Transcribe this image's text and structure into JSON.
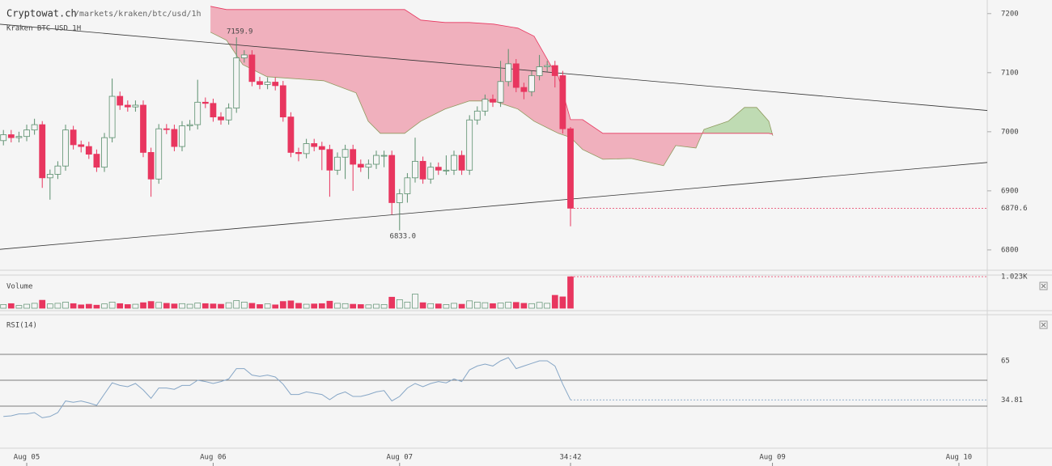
{
  "header": {
    "site": "Cryptowat.ch",
    "path": "/markets/kraken/btc/usd/1h"
  },
  "chart_data": [
    {
      "type": "candlestick",
      "title": "Kraken BTC USD 1H",
      "x": [
        -3,
        -2,
        -1,
        0,
        1,
        2,
        3,
        4,
        5,
        6,
        7,
        8,
        9,
        10,
        11,
        12,
        13,
        14,
        15,
        16,
        17,
        18,
        19,
        20,
        21,
        22,
        23,
        24,
        25,
        26,
        27,
        28,
        29,
        30,
        31,
        32,
        33,
        34,
        35,
        36,
        37,
        38,
        39,
        40,
        41,
        42,
        43,
        44,
        45,
        46,
        47,
        48,
        49,
        50,
        51,
        52,
        53,
        54,
        55,
        56,
        57,
        58,
        59,
        60,
        61,
        62,
        63,
        64,
        65,
        66,
        67,
        68,
        69,
        70
      ],
      "open": [
        6985,
        6995,
        6990,
        6992,
        7003,
        7012,
        6922,
        6928,
        6942,
        7003,
        6978,
        6975,
        6962,
        6940,
        6990,
        7060,
        7045,
        7042,
        7045,
        6965,
        6920,
        7005,
        7004,
        6975,
        7010,
        7012,
        7050,
        7048,
        7025,
        7020,
        7040,
        7125,
        7130,
        7085,
        7080,
        7084,
        7078,
        7025,
        6965,
        6963,
        6980,
        6975,
        6970,
        6935,
        6957,
        6970,
        6945,
        6940,
        6945,
        6960,
        6960,
        6880,
        6895,
        6922,
        6950,
        6920,
        6940,
        6935,
        6935,
        6960,
        6935,
        7020,
        7035,
        7055,
        7050,
        7085,
        7115,
        7075,
        7068,
        7095,
        7110,
        7112,
        7095,
        7005
      ],
      "high": [
        7003,
        7003,
        7000,
        7012,
        7022,
        7018,
        6936,
        6950,
        7012,
        7010,
        6985,
        6983,
        6970,
        6998,
        7090,
        7068,
        7053,
        7053,
        7053,
        6973,
        7013,
        7013,
        7012,
        7018,
        7020,
        7088,
        7058,
        7056,
        7033,
        7048,
        7159.9,
        7138,
        7138,
        7093,
        7092,
        7092,
        7086,
        7033,
        6973,
        6988,
        6988,
        6983,
        6978,
        6965,
        6978,
        6978,
        6953,
        6953,
        6968,
        6968,
        6968,
        6903,
        6930,
        6990,
        6958,
        6948,
        6948,
        6960,
        6968,
        6968,
        7028,
        7043,
        7063,
        7063,
        7120,
        7140,
        7123,
        7083,
        7103,
        7130,
        7120,
        7120,
        7103,
        7008
      ],
      "low": [
        6977,
        6982,
        6982,
        6984,
        6995,
        6905,
        6885,
        6920,
        6934,
        6970,
        6965,
        6954,
        6932,
        6932,
        6982,
        7037,
        7034,
        7034,
        6957,
        6890,
        6912,
        6996,
        6967,
        6967,
        7002,
        7004,
        7040,
        7017,
        7012,
        7012,
        7032,
        7117,
        7077,
        7072,
        7072,
        7070,
        7017,
        6957,
        6950,
        6955,
        6967,
        6935,
        6890,
        6927,
        6920,
        6900,
        6932,
        6920,
        6937,
        6940,
        6860,
        6833.0,
        6880,
        6914,
        6912,
        6912,
        6927,
        6927,
        6927,
        6927,
        6927,
        7012,
        7027,
        7042,
        7042,
        7077,
        7067,
        7055,
        7060,
        7087,
        7102,
        7075,
        6997,
        6840
      ],
      "close": [
        6995,
        6990,
        6992,
        7003,
        7012,
        6922,
        6928,
        6942,
        7003,
        6978,
        6975,
        6962,
        6940,
        6990,
        7060,
        7045,
        7042,
        7045,
        6965,
        6920,
        7005,
        7004,
        6975,
        7010,
        7012,
        7050,
        7048,
        7025,
        7020,
        7040,
        7125,
        7130,
        7085,
        7080,
        7084,
        7078,
        7025,
        6965,
        6963,
        6980,
        6975,
        6970,
        6935,
        6957,
        6970,
        6945,
        6940,
        6945,
        6960,
        6960,
        6880,
        6895,
        6922,
        6950,
        6920,
        6940,
        6935,
        6935,
        6960,
        6935,
        7020,
        7035,
        7055,
        7050,
        7085,
        7115,
        7075,
        7068,
        7095,
        7110,
        7112,
        7095,
        7005,
        6870.6
      ],
      "up_color": "#5b8f6e",
      "down_color": "#e8365f",
      "xlim": [
        -3.44,
        123.65
      ],
      "ylim": [
        6767,
        7223
      ],
      "yticks": [
        7200,
        7100,
        7000,
        6900,
        6800
      ],
      "xticks": [
        {
          "value": 0,
          "label": "Aug 05"
        },
        {
          "value": 24,
          "label": "Aug 06"
        },
        {
          "value": 48,
          "label": "Aug 07"
        },
        {
          "value": 96,
          "label": "Aug 09"
        },
        {
          "value": 120,
          "label": "Aug 10"
        }
      ],
      "countdown": "34:42",
      "extremes": [
        {
          "value": 7159.9,
          "label": "7159.9"
        },
        {
          "value": 6833.0,
          "label": "6833.0"
        }
      ],
      "last": {
        "value": 6870.6,
        "label": "6870.6"
      },
      "trendlines": [
        {
          "x": [
            -3.44,
            123.65
          ],
          "y": [
            7182,
            7036
          ]
        },
        {
          "x": [
            -3.44,
            123.65
          ],
          "y": [
            6801,
            6948
          ]
        }
      ],
      "cloud": {
        "x": [
          23.65,
          25.73,
          27.81,
          30.94,
          38.23,
          42.4,
          43.96,
          45.52,
          48.65,
          50.73,
          53.85,
          56.98,
          60.1,
          63.23,
          65.31,
          67.4,
          68.44,
          70,
          71.56,
          74.17,
          77.81,
          81.98,
          83.54,
          86.15,
          87.19,
          90.31,
          92.4,
          93.96,
          95.52,
          96.04
        ],
        "span_a": [
          7168.5,
          7154.8,
          7113.7,
          7093.2,
          7086.3,
          7065.8,
          7017.8,
          6997.3,
          6997.3,
          7017.8,
          7038.4,
          7052.1,
          7052.1,
          7038.4,
          7017.8,
          7004.1,
          6997.3,
          6990.4,
          6969.9,
          6953.4,
          6954.8,
          6942.5,
          6976.7,
          6972.6,
          7004.1,
          7017.8,
          7041.1,
          7041.1,
          7017.8,
          6993.2
        ],
        "span_b": [
          7212.3,
          7206.8,
          7206.8,
          7206.8,
          7206.8,
          7206.8,
          7206.8,
          7206.8,
          7206.8,
          7189.0,
          7184.9,
          7184.9,
          7182.2,
          7175.3,
          7161.6,
          7113.7,
          7093.2,
          7020.5,
          7020.5,
          6997.3,
          6997.3,
          6997.3,
          6997.3,
          6997.3,
          6997.3,
          6997.3,
          6997.3,
          6997.3,
          6997.3,
          6995.9
        ],
        "bear_color": "#f0a9b7",
        "bull_color": "#b9d8ac"
      }
    },
    {
      "type": "bar",
      "title": "Volume",
      "values": [
        120,
        150,
        90,
        130,
        160,
        260,
        140,
        160,
        200,
        150,
        110,
        130,
        100,
        140,
        200,
        150,
        120,
        130,
        180,
        220,
        190,
        160,
        140,
        150,
        130,
        170,
        150,
        140,
        130,
        180,
        250,
        200,
        160,
        120,
        140,
        110,
        220,
        240,
        160,
        130,
        140,
        150,
        230,
        160,
        150,
        130,
        120,
        110,
        130,
        120,
        360,
        280,
        200,
        460,
        180,
        150,
        140,
        120,
        160,
        130,
        240,
        200,
        180,
        150,
        170,
        200,
        190,
        160,
        150,
        190,
        160,
        420,
        370,
        1023
      ],
      "ylim": [
        0,
        1050
      ],
      "last": {
        "value": 1023,
        "label": "1.023K"
      }
    },
    {
      "type": "line",
      "title": "RSI(14)",
      "color": "#86a6c6",
      "values": [
        22,
        22.5,
        24,
        24,
        25,
        21,
        22,
        25,
        34,
        33,
        34,
        32.5,
        30.6,
        39.4,
        48,
        46,
        45,
        47.5,
        42.5,
        36,
        44,
        44,
        43,
        46,
        46,
        50,
        49,
        47.5,
        49,
        51,
        59,
        59,
        54,
        53,
        54,
        52.5,
        47,
        39,
        39,
        41,
        40,
        39,
        35,
        39,
        41,
        37.5,
        37.5,
        39,
        41,
        42,
        34,
        37.5,
        44,
        47.5,
        45,
        47.5,
        49,
        48,
        51,
        49,
        58,
        61,
        62.5,
        61,
        65,
        67.5,
        59,
        61,
        63,
        65,
        65,
        61,
        47,
        34.81
      ],
      "ylim": [
        -1.25,
        100
      ],
      "yticks": [
        65
      ],
      "levels": [
        70,
        50,
        30
      ],
      "last": {
        "value": 34.81,
        "label": "34.81"
      }
    }
  ]
}
